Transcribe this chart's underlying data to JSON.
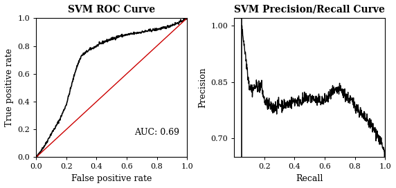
{
  "roc_title": "SVM ROC Curve",
  "roc_xlabel": "False positive rate",
  "roc_ylabel": "True positive rate",
  "roc_auc_text": "AUC: 0.69",
  "roc_xlim": [
    0.0,
    1.0
  ],
  "roc_ylim": [
    0.0,
    1.0
  ],
  "roc_xticks": [
    0.0,
    0.2,
    0.4,
    0.6,
    0.8,
    1.0
  ],
  "roc_yticks": [
    0.0,
    0.2,
    0.4,
    0.6,
    0.8,
    1.0
  ],
  "pr_title": "SVM Precision/Recall Curve",
  "pr_xlabel": "Recall",
  "pr_ylabel": "Precision",
  "pr_xlim": [
    0.0,
    1.0
  ],
  "pr_ylim": [
    0.65,
    1.02
  ],
  "pr_xticks": [
    0.2,
    0.4,
    0.6,
    0.8,
    1.0
  ],
  "pr_yticks": [
    0.7,
    0.85,
    1.0
  ],
  "bg_color": "#ffffff",
  "border_color": "#000000",
  "roc_curve_color": "#000000",
  "roc_diag_color": "#cc0000",
  "pr_curve_color": "#000000",
  "title_fontsize": 10,
  "label_fontsize": 9,
  "tick_fontsize": 8,
  "auc_fontsize": 9
}
